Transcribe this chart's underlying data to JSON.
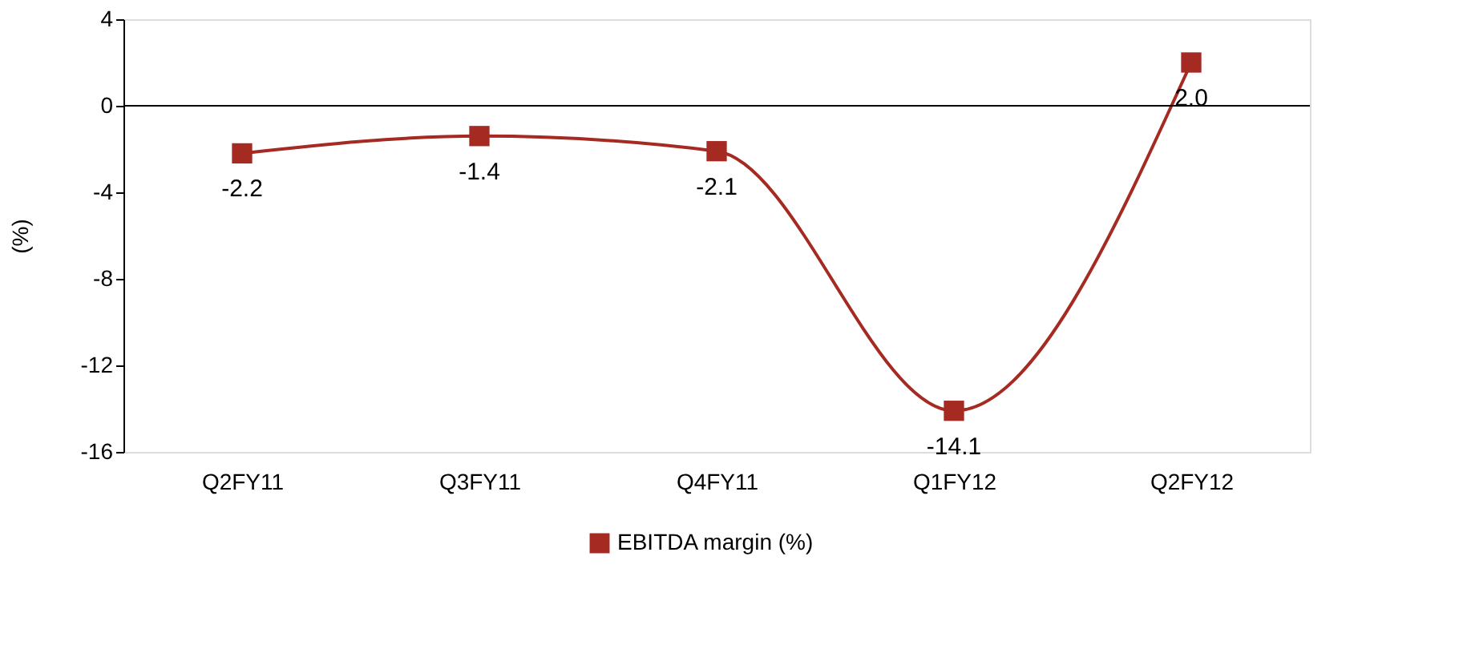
{
  "chart_data": {
    "type": "line",
    "ylabel": "(%)",
    "categories": [
      "Q2FY11",
      "Q3FY11",
      "Q4FY11",
      "Q1FY12",
      "Q2FY12"
    ],
    "series": [
      {
        "name": "EBITDA margin (%)",
        "color": "#a52a22",
        "values": [
          -2.2,
          -1.4,
          -2.1,
          -14.1,
          2.0
        ],
        "value_labels": [
          "-2.2",
          "-1.4",
          "-2.1",
          "-14.1",
          "2.0"
        ]
      }
    ],
    "ylim": [
      -16,
      4
    ],
    "yticks": [
      -16,
      -12,
      -8,
      -4,
      0,
      4
    ],
    "ref_lines": [
      {
        "axis": "y",
        "value": 0,
        "color": "#000000"
      }
    ],
    "marker": "square",
    "line_style": "solid",
    "grid": false,
    "legend": "bottom"
  }
}
